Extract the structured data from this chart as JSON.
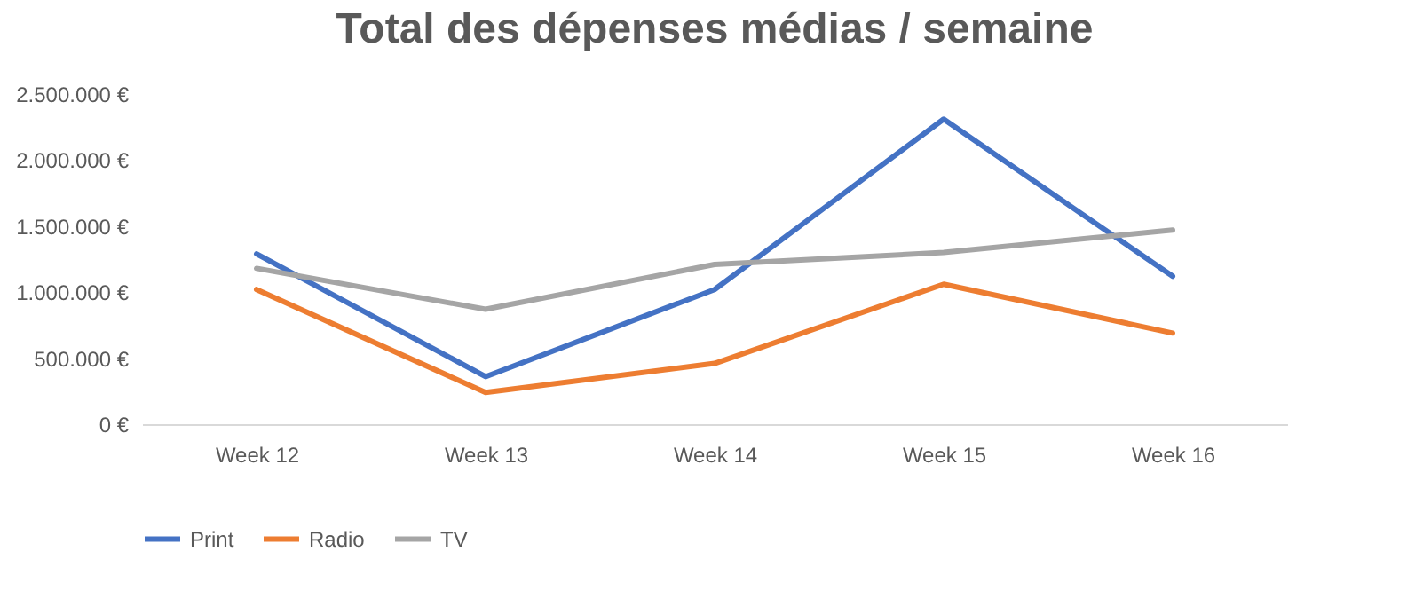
{
  "chart_data": {
    "type": "line",
    "title": "Total des dépenses médias / semaine",
    "categories": [
      "Week 12",
      "Week 13",
      "Week 14",
      "Week 15",
      "Week 16"
    ],
    "series": [
      {
        "name": "Print",
        "color": "#4472c4",
        "values": [
          1290000,
          360000,
          1020000,
          2310000,
          1120000
        ]
      },
      {
        "name": "Radio",
        "color": "#ed7d31",
        "values": [
          1020000,
          240000,
          460000,
          1060000,
          690000
        ]
      },
      {
        "name": "TV",
        "color": "#a5a5a5",
        "values": [
          1180000,
          870000,
          1210000,
          1300000,
          1470000
        ]
      }
    ],
    "ylim": [
      0,
      2500000
    ],
    "yticks": [
      {
        "value": 0,
        "label": "0 €"
      },
      {
        "value": 500000,
        "label": "500.000 €"
      },
      {
        "value": 1000000,
        "label": "1.000.000 €"
      },
      {
        "value": 1500000,
        "label": "1.500.000 €"
      },
      {
        "value": 2000000,
        "label": "2.000.000 €"
      },
      {
        "value": 2500000,
        "label": "2.500.000 €"
      }
    ],
    "grid": false,
    "legend": "bottom",
    "marker": "none",
    "line_style": "solid"
  }
}
